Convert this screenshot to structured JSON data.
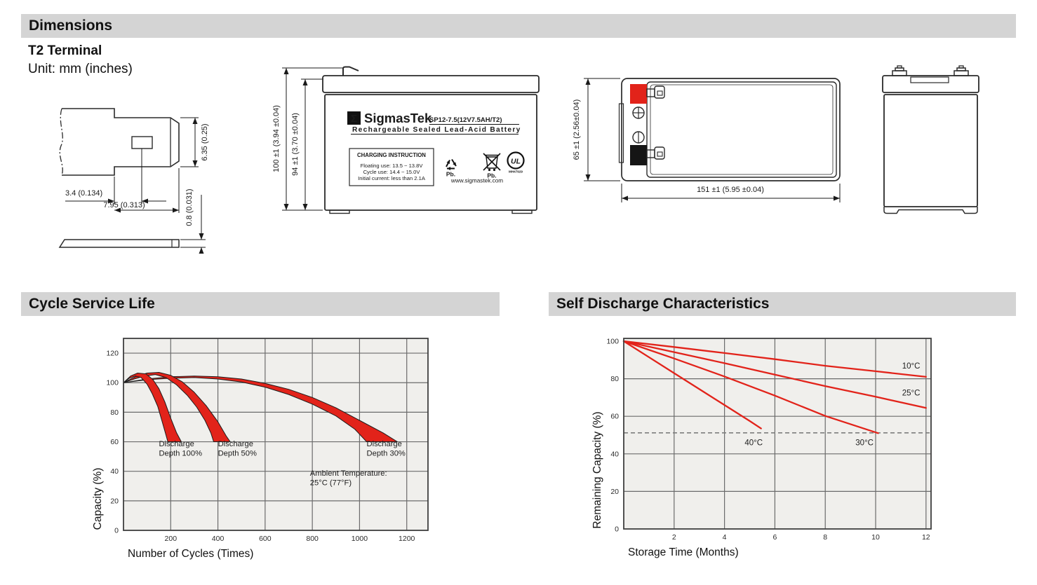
{
  "page": {
    "bar_color": "#d4d4d4",
    "accent_red": "#e2231a"
  },
  "sections": {
    "dimensions": {
      "title": "Dimensions",
      "terminal_type": "T2 Terminal",
      "unit_note": "Unit: mm (inches)"
    },
    "cycle": {
      "title": "Cycle Service Life"
    },
    "self_discharge": {
      "title": "Self Discharge Characteristics"
    }
  },
  "terminal_drawing": {
    "height": "6.35 (0.25)",
    "offset": "3.4 (0.134)",
    "width": "7.95 (0.313)",
    "thickness": "0.8 (0.031)"
  },
  "front_view": {
    "total_height": "100 ±1 (3.94 ±0.04)",
    "case_height": "94 ±1 (3.70 ±0.04)",
    "sigma": "Σ",
    "brand": "SigmasTek",
    "model": "SP12-7.5(12V7.5AH/T2)",
    "type_line": "Rechargeable Sealed Lead-Acid Battery",
    "charging": {
      "title": "CHARGING INSTRUCTION",
      "line1": "Floating use: 13.5 ~ 13.8V",
      "line2": "Cycle use: 14.4 ~ 15.0V",
      "line3": "Initial current: less than 2.1A"
    },
    "pb1": "Pb.",
    "pb2": "Pb.",
    "ul_mark": "UL",
    "ul_code": "MH47929",
    "website": "www.sigmastek.com"
  },
  "top_view": {
    "height": "65 ±1 (2.56±0.04)",
    "length": "151 ±1 (5.95 ±0.04)"
  },
  "chart_data": [
    {
      "id": "cycle",
      "type": "area",
      "title": "Cycle Service Life",
      "xlabel": "Number of Cycles (Times)",
      "ylabel": "Capacity (%)",
      "xlim": [
        0,
        1290
      ],
      "ylim": [
        0,
        130
      ],
      "xticks": [
        200,
        400,
        600,
        800,
        1000,
        1200
      ],
      "yticks": [
        0,
        20,
        40,
        60,
        80,
        100,
        120
      ],
      "ygrid_max": 120,
      "grid": true,
      "legend_position": "none",
      "band_color": "#e2231a",
      "bands": [
        {
          "name": "Discharge Depth 30%",
          "upper": [
            [
              0,
              100
            ],
            [
              100,
              102.5
            ],
            [
              200,
              104
            ],
            [
              300,
              104.5
            ],
            [
              400,
              104
            ],
            [
              500,
              102.5
            ],
            [
              600,
              99.5
            ],
            [
              700,
              95.5
            ],
            [
              800,
              90
            ],
            [
              900,
              83
            ],
            [
              1000,
              74.5
            ],
            [
              1100,
              66
            ],
            [
              1160,
              60
            ]
          ],
          "lower": [
            [
              0,
              100
            ],
            [
              100,
              102
            ],
            [
              200,
              103
            ],
            [
              300,
              103.5
            ],
            [
              400,
              102.5
            ],
            [
              500,
              100.5
            ],
            [
              600,
              97
            ],
            [
              700,
              92
            ],
            [
              800,
              85.5
            ],
            [
              900,
              77.5
            ],
            [
              980,
              68.5
            ],
            [
              1030,
              60
            ]
          ]
        },
        {
          "name": "Discharge Depth 50%",
          "upper": [
            [
              0,
              100
            ],
            [
              50,
              104
            ],
            [
              100,
              106.5
            ],
            [
              150,
              107
            ],
            [
              200,
              105
            ],
            [
              250,
              100.5
            ],
            [
              300,
              93.5
            ],
            [
              350,
              84.5
            ],
            [
              400,
              73.5
            ],
            [
              435,
              64
            ],
            [
              452,
              60
            ]
          ],
          "lower": [
            [
              0,
              100
            ],
            [
              45,
              102.5
            ],
            [
              90,
              104.5
            ],
            [
              135,
              105.5
            ],
            [
              180,
              103.5
            ],
            [
              225,
              98.5
            ],
            [
              270,
              91.5
            ],
            [
              310,
              83.5
            ],
            [
              345,
              74.5
            ],
            [
              370,
              66
            ],
            [
              382,
              60
            ]
          ]
        },
        {
          "name": "Discharge Depth 100%",
          "upper": [
            [
              0,
              100
            ],
            [
              30,
              104.5
            ],
            [
              60,
              106.5
            ],
            [
              95,
              106
            ],
            [
              125,
              102
            ],
            [
              150,
              96
            ],
            [
              175,
              87
            ],
            [
              200,
              76
            ],
            [
              225,
              66
            ],
            [
              245,
              60
            ]
          ],
          "lower": [
            [
              0,
              100
            ],
            [
              25,
              103
            ],
            [
              50,
              104.5
            ],
            [
              75,
              103.5
            ],
            [
              100,
              99
            ],
            [
              122,
              92.5
            ],
            [
              145,
              84
            ],
            [
              165,
              73
            ],
            [
              180,
              64.5
            ],
            [
              188,
              60
            ]
          ]
        }
      ],
      "annotations": [
        {
          "lines": [
            "Discharge",
            "Depth 100%"
          ],
          "x": 150,
          "y": 57
        },
        {
          "lines": [
            "Discharge",
            "Depth 50%"
          ],
          "x": 400,
          "y": 57
        },
        {
          "lines": [
            "Discharge",
            "Depth 30%"
          ],
          "x": 1030,
          "y": 57
        },
        {
          "lines": [
            "Ambient Temperature:",
            "25°C (77°F)"
          ],
          "x": 790,
          "y": 37
        }
      ]
    },
    {
      "id": "self_discharge",
      "type": "line",
      "title": "Self Discharge Characteristics",
      "xlabel": "Storage Time (Months)",
      "ylabel": "Remaining Capacity (%)",
      "xlim": [
        0,
        12.2
      ],
      "ylim": [
        0,
        101.5
      ],
      "xticks": [
        2,
        4,
        6,
        8,
        10,
        12
      ],
      "yticks": [
        0,
        20,
        40,
        60,
        80,
        100
      ],
      "ygrid_max": 80,
      "grid": true,
      "legend_position": "inline-labels",
      "line_color": "#e2231a",
      "dashed_line_y": 51.2,
      "series": [
        {
          "name": "10°C",
          "points": [
            [
              0,
              100
            ],
            [
              2,
              96.9
            ],
            [
              4,
              93.7
            ],
            [
              6,
              90.4
            ],
            [
              8,
              86.9
            ],
            [
              10,
              84
            ],
            [
              12,
              81
            ]
          ],
          "label_x": 11.05,
          "label_y": 85.5
        },
        {
          "name": "25°C",
          "points": [
            [
              0,
              100
            ],
            [
              2,
              94.2
            ],
            [
              4,
              88.3
            ],
            [
              6,
              82.2
            ],
            [
              8,
              76.1
            ],
            [
              10,
              70.4
            ],
            [
              12,
              64.5
            ]
          ],
          "label_x": 11.05,
          "label_y": 71
        },
        {
          "name": "30°C",
          "points": [
            [
              0,
              100
            ],
            [
              2,
              90.8
            ],
            [
              4,
              81.2
            ],
            [
              6,
              71
            ],
            [
              8,
              60.2
            ],
            [
              10.1,
              51
            ]
          ],
          "label_x": 9.2,
          "label_y": 44.5
        },
        {
          "name": "40°C",
          "points": [
            [
              0,
              100
            ],
            [
              1,
              91.5
            ],
            [
              2,
              83
            ],
            [
              3,
              74.5
            ],
            [
              4,
              66
            ],
            [
              5,
              57.5
            ],
            [
              5.45,
              53.5
            ]
          ],
          "label_x": 4.8,
          "label_y": 44.5
        }
      ]
    }
  ]
}
